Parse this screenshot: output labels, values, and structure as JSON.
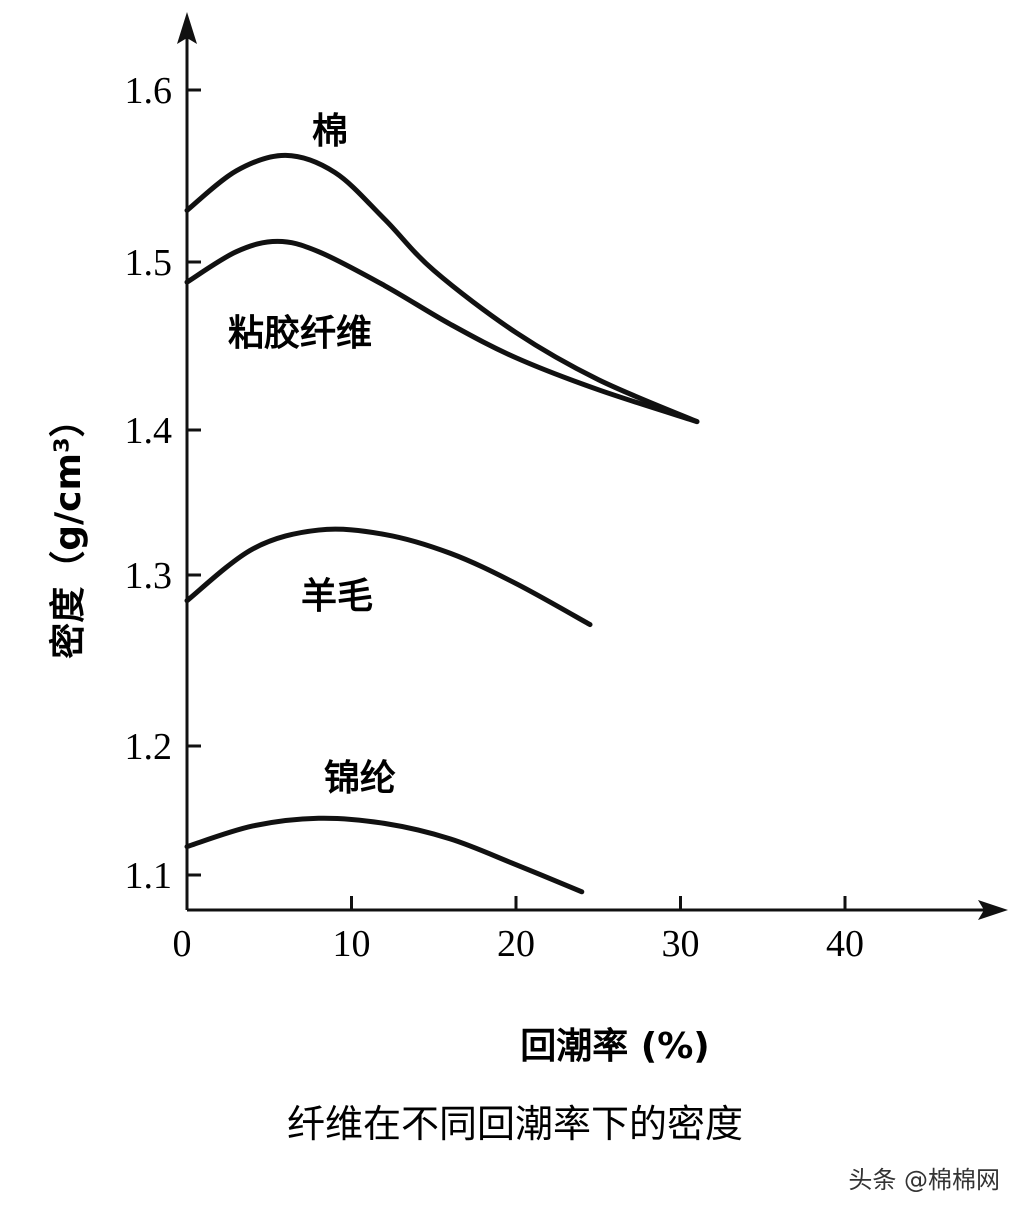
{
  "chart_data": {
    "type": "line",
    "title": "纤维在不同回潮率下的密度",
    "xlabel": "回潮率 (%)",
    "ylabel": "密度（g/cm³）",
    "xlim": [
      0,
      48
    ],
    "ylim": [
      1.08,
      1.65
    ],
    "x_ticks": [
      0,
      10,
      20,
      30,
      40
    ],
    "y_ticks": [
      1.1,
      1.2,
      1.3,
      1.4,
      1.5,
      1.6
    ],
    "x_tick_labels": [
      "0",
      "10",
      "20",
      "30",
      "40"
    ],
    "y_tick_labels": [
      "1.1",
      "1.2",
      "1.3",
      "1.4",
      "1.5",
      "1.6"
    ],
    "grid": false,
    "line_color": "#111111",
    "series": [
      {
        "name": "棉",
        "x": [
          0,
          3,
          6,
          9,
          12,
          15,
          20,
          25,
          31
        ],
        "y": [
          1.53,
          1.553,
          1.562,
          1.552,
          1.525,
          1.495,
          1.458,
          1.43,
          1.405
        ]
      },
      {
        "name": "粘胶纤维",
        "x": [
          0,
          3,
          5.5,
          8,
          12,
          16,
          20,
          25,
          31
        ],
        "y": [
          1.488,
          1.506,
          1.512,
          1.506,
          1.486,
          1.463,
          1.443,
          1.424,
          1.405
        ]
      },
      {
        "name": "羊毛",
        "x": [
          0,
          4,
          8,
          12,
          16,
          20,
          24.5
        ],
        "y": [
          1.285,
          1.318,
          1.331,
          1.328,
          1.315,
          1.295,
          1.271
        ]
      },
      {
        "name": "锦纶",
        "x": [
          0,
          4,
          8,
          12,
          16,
          20,
          24
        ],
        "y": [
          1.122,
          1.138,
          1.144,
          1.14,
          1.128,
          1.108,
          1.087
        ]
      }
    ]
  },
  "watermark": "头条 @棉棉网"
}
